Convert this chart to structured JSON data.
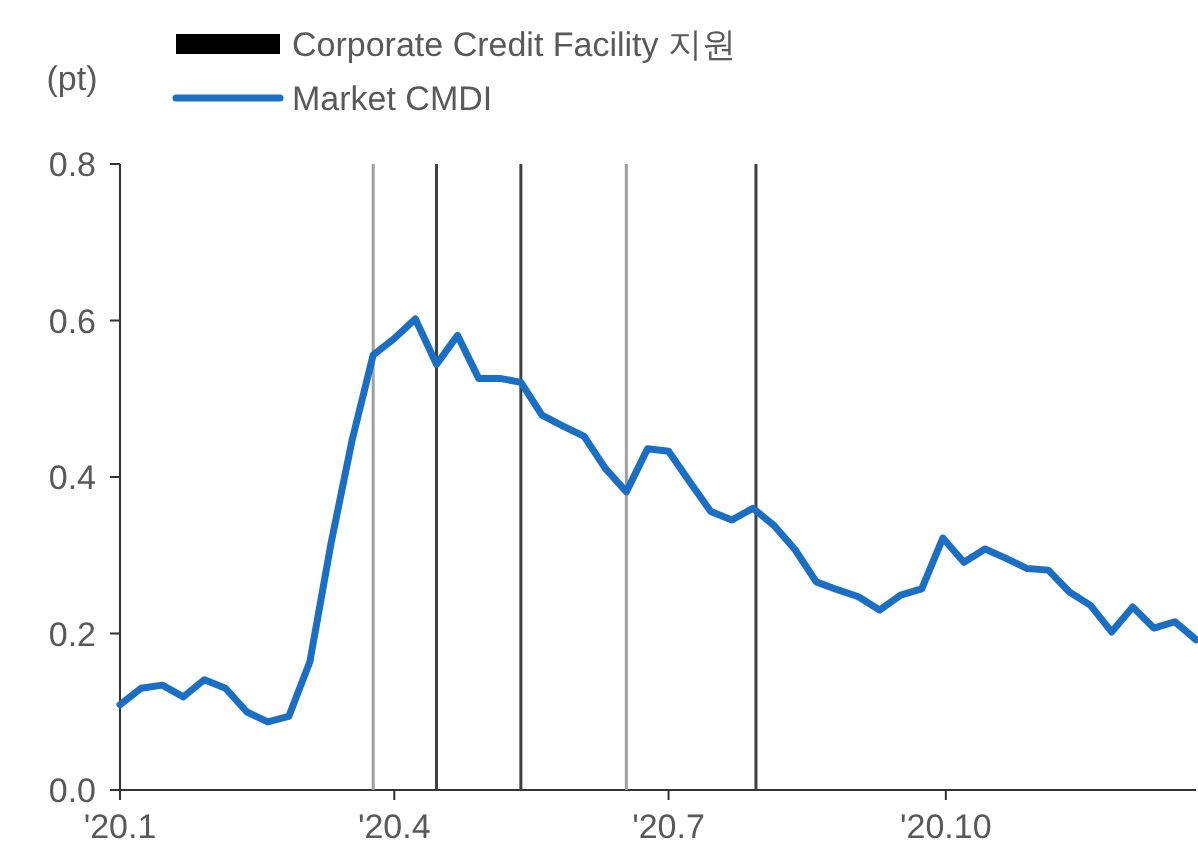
{
  "chart_data": {
    "type": "line",
    "ylabel": "(pt)",
    "legend": "top",
    "marker": "none",
    "line_style": "solid",
    "grid": false,
    "xlim": [
      "2020-01-01",
      "2020-12-23"
    ],
    "xticks": [
      {
        "value": "2020-01-01",
        "label": "'20.1"
      },
      {
        "value": "2020-04-01",
        "label": "'20.4"
      },
      {
        "value": "2020-07-01",
        "label": "'20.7"
      },
      {
        "value": "2020-10-01",
        "label": "'20.10"
      }
    ],
    "ylim": [
      0,
      0.8
    ],
    "yticks": [
      {
        "value": 0,
        "label": "0.0"
      },
      {
        "value": 0.2,
        "label": "0.2"
      },
      {
        "value": 0.4,
        "label": "0.4"
      },
      {
        "value": 0.6,
        "label": "0.6"
      },
      {
        "value": 0.8,
        "label": "0.8"
      }
    ],
    "series": [
      {
        "name": "Corporate Credit Facility 지원",
        "type": "bar",
        "color": "#000000",
        "colors": [
          "#a0a0a0",
          "#404040",
          "#404040",
          "#a0a0a0",
          "#404040"
        ],
        "x": [
          "2020-03-25",
          "2020-04-15",
          "2020-05-13",
          "2020-06-17",
          "2020-07-30"
        ],
        "values": [
          0.8,
          0.8,
          0.8,
          0.8,
          0.8
        ]
      },
      {
        "name": "Market CMDI",
        "color": "#1a6fc4",
        "x": [
          "2020-01-01",
          "2020-01-08",
          "2020-01-15",
          "2020-01-22",
          "2020-01-29",
          "2020-02-05",
          "2020-02-12",
          "2020-02-19",
          "2020-02-26",
          "2020-03-04",
          "2020-03-11",
          "2020-03-18",
          "2020-03-25",
          "2020-04-01",
          "2020-04-08",
          "2020-04-15",
          "2020-04-22",
          "2020-04-29",
          "2020-05-06",
          "2020-05-13",
          "2020-05-20",
          "2020-05-27",
          "2020-06-03",
          "2020-06-10",
          "2020-06-17",
          "2020-06-24",
          "2020-07-01",
          "2020-07-08",
          "2020-07-15",
          "2020-07-22",
          "2020-07-29",
          "2020-08-05",
          "2020-08-12",
          "2020-08-19",
          "2020-08-26",
          "2020-09-02",
          "2020-09-09",
          "2020-09-16",
          "2020-09-23",
          "2020-09-30",
          "2020-10-07",
          "2020-10-14",
          "2020-10-21",
          "2020-10-28",
          "2020-11-04",
          "2020-11-11",
          "2020-11-18",
          "2020-11-25",
          "2020-12-02",
          "2020-12-09",
          "2020-12-16",
          "2020-12-23"
        ],
        "values": [
          0.109,
          0.13,
          0.134,
          0.119,
          0.141,
          0.13,
          0.1,
          0.087,
          0.094,
          0.164,
          0.315,
          0.447,
          0.556,
          0.577,
          0.602,
          0.544,
          0.581,
          0.526,
          0.526,
          0.521,
          0.479,
          0.465,
          0.452,
          0.411,
          0.381,
          0.436,
          0.433,
          0.394,
          0.356,
          0.345,
          0.36,
          0.338,
          0.307,
          0.266,
          0.256,
          0.247,
          0.23,
          0.249,
          0.257,
          0.322,
          0.291,
          0.308,
          0.296,
          0.283,
          0.281,
          0.253,
          0.236,
          0.202,
          0.234,
          0.207,
          0.215,
          0.192
        ]
      }
    ]
  }
}
